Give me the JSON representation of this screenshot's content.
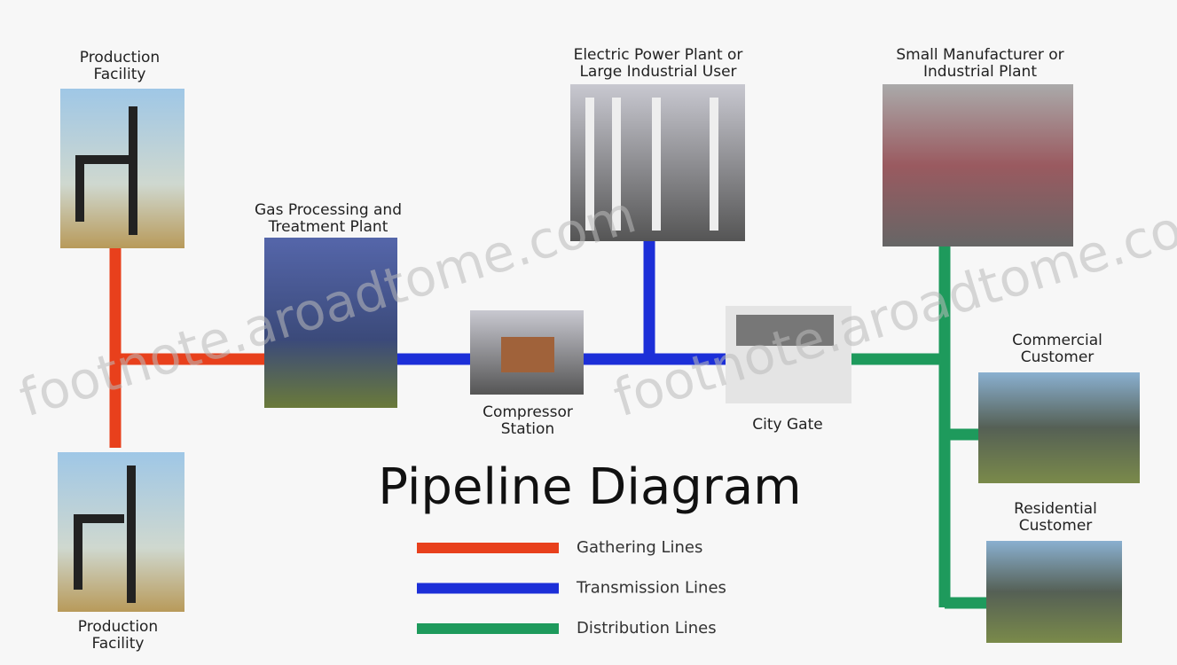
{
  "title": "Pipeline Diagram",
  "watermark": "footnote.aroadtome.com",
  "nodes": [
    {
      "label": [
        "Production",
        "Facility"
      ]
    },
    {
      "label": [
        "Gas Processing and",
        "Treatment Plant"
      ]
    },
    {
      "label": [
        "Compressor",
        "Station"
      ]
    },
    {
      "label": [
        "Electric Power Plant or",
        "Large Industrial User"
      ]
    },
    {
      "label": [
        "City Gate"
      ]
    },
    {
      "label": [
        "Small Manufacturer or",
        "Industrial Plant"
      ]
    },
    {
      "label": [
        "Commercial",
        "Customer"
      ]
    },
    {
      "label": [
        "Residential",
        "Customer"
      ]
    },
    {
      "label": [
        "Production",
        "Facility"
      ]
    }
  ],
  "legend": [
    {
      "label": "Gathering Lines",
      "color": "#e8401c"
    },
    {
      "label": "Transmission Lines",
      "color": "#1c2fd8"
    },
    {
      "label": "Distribution Lines",
      "color": "#1e9a5c"
    }
  ]
}
